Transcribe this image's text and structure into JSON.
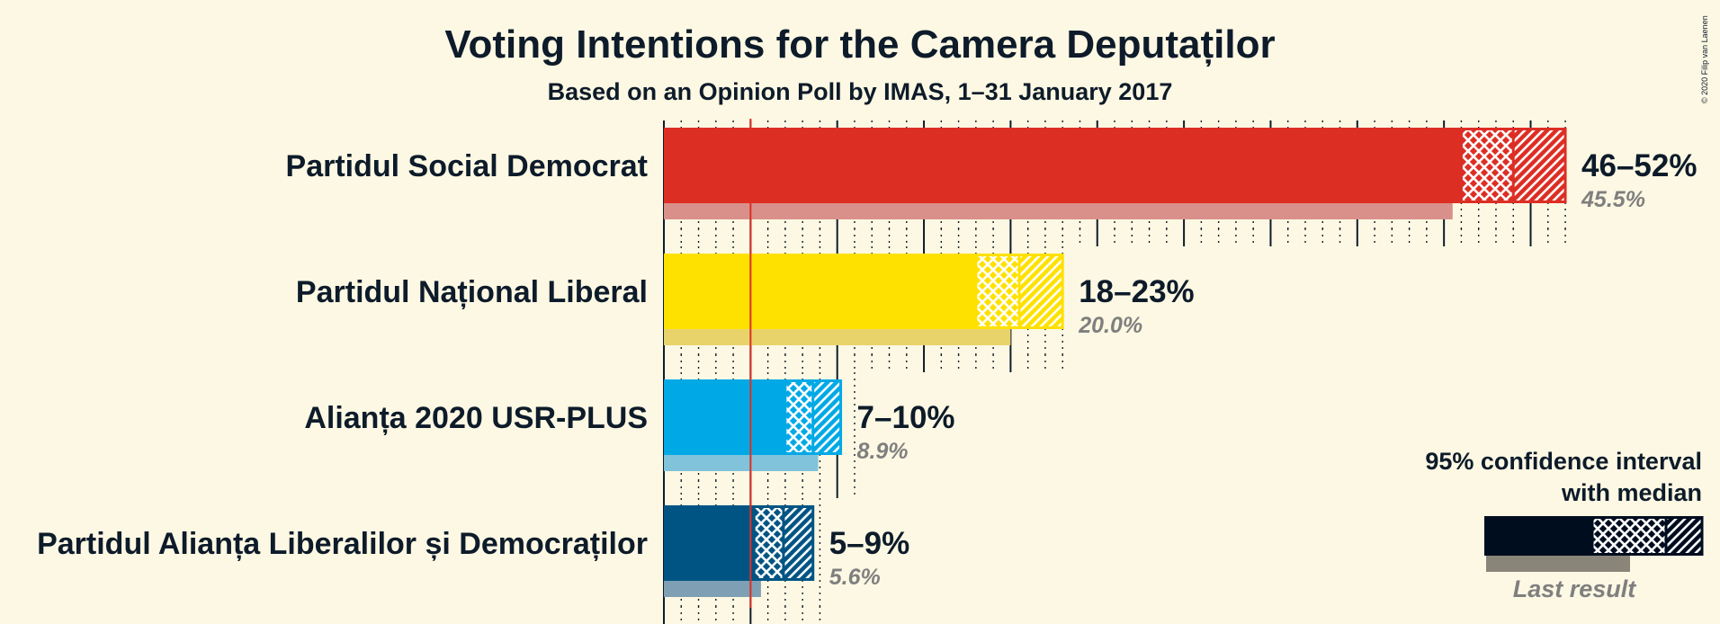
{
  "title": "Voting Intentions for the Camera Deputaților",
  "subtitle": "Based on an Opinion Poll by IMAS, 1–31 January 2017",
  "copyright": "© 2020 Filip van Laenen",
  "legend": {
    "line1": "95% confidence interval",
    "line2": "with median",
    "last_result": "Last result",
    "color": "#000d1f"
  },
  "chart_data": {
    "type": "bar",
    "orientation": "horizontal",
    "x_unit": "%",
    "xlim": [
      0,
      52
    ],
    "threshold": 5,
    "categories": [
      "Partidul Social Democrat",
      "Partidul Național Liberal",
      "Alianța 2020 USR-PLUS",
      "Partidul Alianța Liberalilor și Democraților"
    ],
    "series": [
      {
        "party": "Partidul Social Democrat",
        "ci_low": 46,
        "median": 49,
        "ci_high": 52,
        "range_label": "46–52%",
        "last_result": 45.5,
        "last_label": "45.5%",
        "color": "#dd2e24",
        "last_color": "#d9908a"
      },
      {
        "party": "Partidul Național Liberal",
        "ci_low": 18,
        "median": 20.5,
        "ci_high": 23,
        "range_label": "18–23%",
        "last_result": 20.0,
        "last_label": "20.0%",
        "color": "#ffe100",
        "last_color": "#e8d36a"
      },
      {
        "party": "Alianța 2020 USR-PLUS",
        "ci_low": 7,
        "median": 8.6,
        "ci_high": 10.2,
        "range_label": "7–10%",
        "last_result": 8.9,
        "last_label": "8.9%",
        "color": "#00a9e6",
        "last_color": "#80c3da"
      },
      {
        "party": "Partidul Alianța Liberalilor și Democraților",
        "ci_low": 5.2,
        "median": 6.9,
        "ci_high": 8.6,
        "range_label": "5–9%",
        "last_result": 5.6,
        "last_label": "5.6%",
        "color": "#005484",
        "last_color": "#7f9fb4"
      }
    ]
  }
}
